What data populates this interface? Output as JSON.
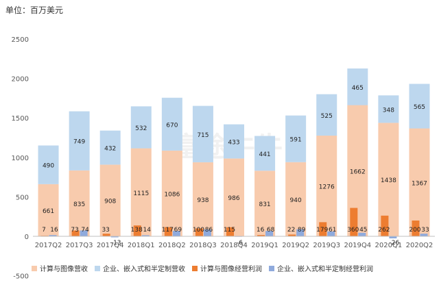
{
  "unit_label": "单位：百万美元",
  "watermark": "富途牛牛",
  "chart_data": {
    "type": "bar",
    "categories": [
      "2017Q2",
      "2017Q3",
      "2017Q4",
      "2018Q1",
      "2018Q2",
      "2018Q3",
      "2018Q4",
      "2019Q1",
      "2019Q2",
      "2019Q3",
      "2019Q4",
      "2020Q1",
      "2020Q2"
    ],
    "ylim": [
      -500,
      2500
    ],
    "yticks": [
      "-500",
      "0",
      "500",
      "1000",
      "1500",
      "2000",
      "2500"
    ],
    "grid": false,
    "legend_position": "bottom",
    "series": [
      {
        "name": "计算与图像营收",
        "stack": "revenue",
        "color": "#f8cbad",
        "values": [
          661,
          835,
          908,
          1115,
          1086,
          938,
          986,
          831,
          940,
          1276,
          1662,
          1438,
          1367
        ]
      },
      {
        "name": "企业、嵌入式和半定制营收",
        "stack": "revenue",
        "color": "#bdd7ee",
        "values": [
          490,
          749,
          432,
          532,
          670,
          715,
          433,
          441,
          591,
          525,
          465,
          348,
          565
        ]
      },
      {
        "name": "计算与图像经营利润",
        "color": "#ed7d31",
        "values": [
          7,
          73,
          33,
          138,
          117,
          100,
          115,
          16,
          22,
          179,
          360,
          262,
          200
        ]
      },
      {
        "name": "企业、嵌入式和半定制经营利润",
        "color": "#8faadc",
        "values": [
          16,
          74,
          -13,
          14,
          69,
          86,
          -6,
          68,
          89,
          61,
          45,
          -26,
          33
        ]
      }
    ]
  }
}
